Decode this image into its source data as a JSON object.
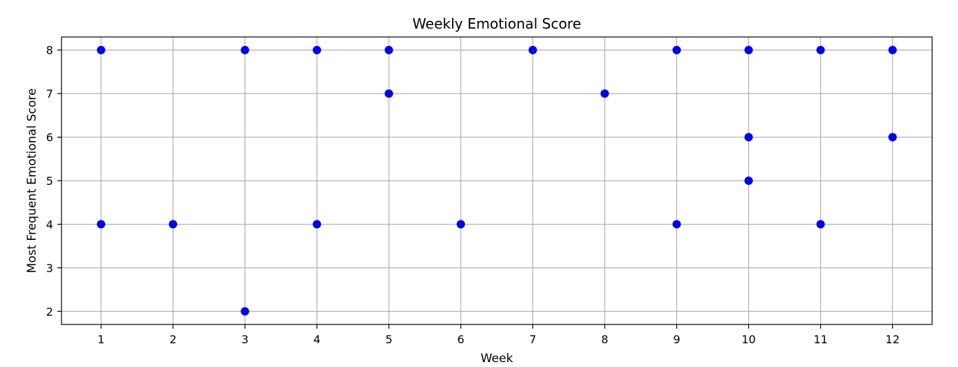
{
  "chart_data": {
    "type": "scatter",
    "title": "Weekly Emotional Score",
    "xlabel": "Week",
    "ylabel": "Most Frequent Emotional Score",
    "x_ticks": [
      1,
      2,
      3,
      4,
      5,
      6,
      7,
      8,
      9,
      10,
      11,
      12
    ],
    "y_ticks": [
      2,
      3,
      4,
      5,
      6,
      7,
      8
    ],
    "xlim": [
      0.45,
      12.55
    ],
    "ylim": [
      1.7,
      8.3
    ],
    "grid": true,
    "marker_color": "#0000ee",
    "points": [
      {
        "x": 1,
        "y": 8
      },
      {
        "x": 1,
        "y": 4
      },
      {
        "x": 2,
        "y": 4
      },
      {
        "x": 3,
        "y": 8
      },
      {
        "x": 3,
        "y": 2
      },
      {
        "x": 4,
        "y": 8
      },
      {
        "x": 4,
        "y": 4
      },
      {
        "x": 5,
        "y": 8
      },
      {
        "x": 5,
        "y": 7
      },
      {
        "x": 6,
        "y": 4
      },
      {
        "x": 7,
        "y": 8
      },
      {
        "x": 8,
        "y": 7
      },
      {
        "x": 9,
        "y": 8
      },
      {
        "x": 9,
        "y": 4
      },
      {
        "x": 10,
        "y": 8
      },
      {
        "x": 10,
        "y": 6
      },
      {
        "x": 10,
        "y": 5
      },
      {
        "x": 11,
        "y": 8
      },
      {
        "x": 11,
        "y": 4
      },
      {
        "x": 12,
        "y": 8
      },
      {
        "x": 12,
        "y": 6
      }
    ]
  }
}
